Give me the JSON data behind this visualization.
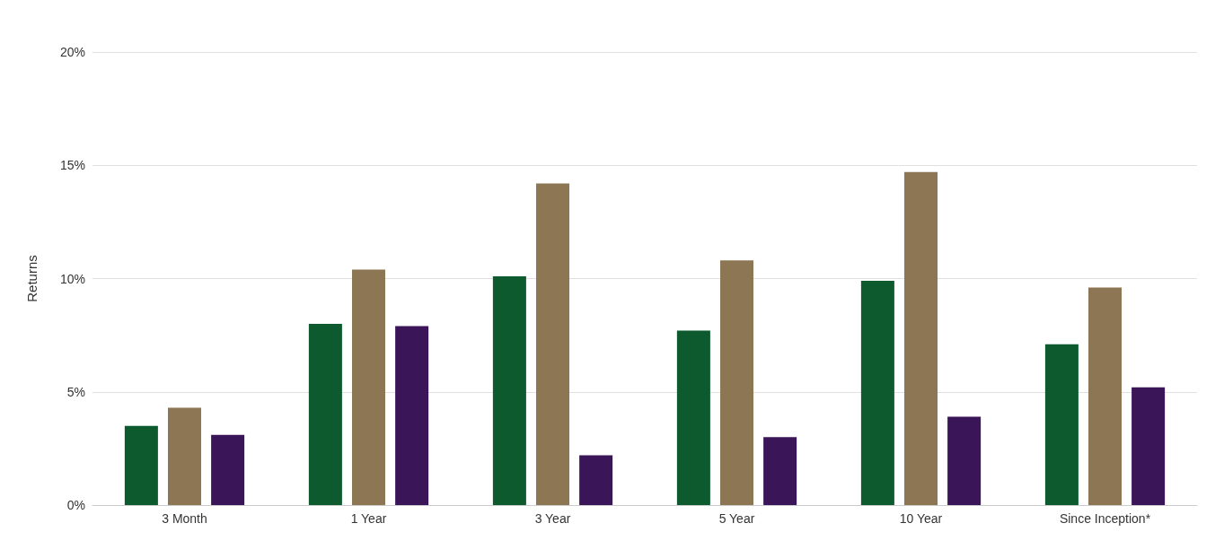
{
  "chart_data": {
    "type": "bar",
    "ylabel": "Returns",
    "categories": [
      "3 Month",
      "1 Year",
      "3 Year",
      "5 Year",
      "10 Year",
      "Since Inception*"
    ],
    "series": [
      {
        "color": "#0d5a2e",
        "values": [
          3.5,
          8.0,
          10.1,
          7.7,
          9.9,
          7.1
        ]
      },
      {
        "color": "#8c7653",
        "values": [
          4.3,
          10.4,
          14.2,
          10.8,
          14.7,
          9.6
        ]
      },
      {
        "color": "#3a1557",
        "values": [
          3.1,
          7.9,
          2.2,
          3.0,
          3.9,
          5.2
        ]
      }
    ],
    "ylim": [
      0,
      20
    ],
    "yticks": [
      {
        "value": 0,
        "label": "0%"
      },
      {
        "value": 5,
        "label": "5%"
      },
      {
        "value": 10,
        "label": "10%"
      },
      {
        "value": 15,
        "label": "15%"
      },
      {
        "value": 20,
        "label": "20%"
      }
    ],
    "grid": "y"
  }
}
